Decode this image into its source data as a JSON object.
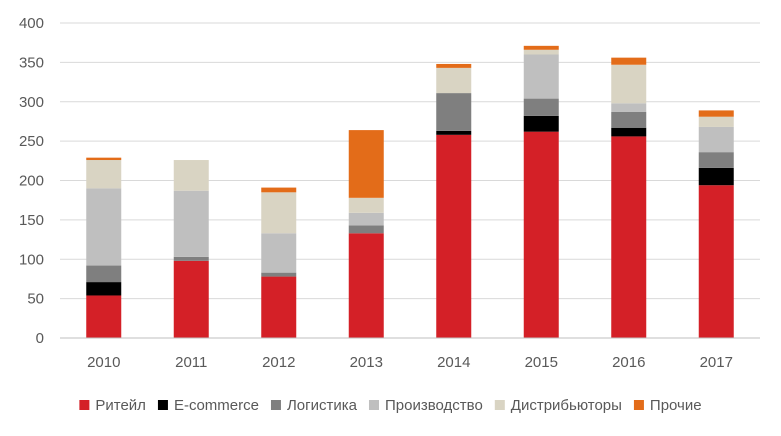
{
  "chart_data": {
    "type": "bar",
    "stacked": true,
    "title": "",
    "xlabel": "",
    "ylabel": "",
    "categories": [
      "2010",
      "2011",
      "2012",
      "2013",
      "2014",
      "2015",
      "2016",
      "2017"
    ],
    "ylim": [
      0,
      400
    ],
    "yticks": [
      0,
      50,
      100,
      150,
      200,
      250,
      300,
      350,
      400
    ],
    "grid": true,
    "legend_position": "bottom",
    "series": [
      {
        "name": "Ритейл",
        "color": "#d42027",
        "values": [
          54,
          98,
          78,
          133,
          258,
          262,
          256,
          194
        ]
      },
      {
        "name": "E-commerce",
        "color": "#000000",
        "values": [
          17,
          0,
          0,
          0,
          5,
          20,
          11,
          22
        ]
      },
      {
        "name": "Логистика",
        "color": "#7f7f7f",
        "values": [
          21,
          5,
          5,
          10,
          48,
          22,
          20,
          20
        ]
      },
      {
        "name": "Производство",
        "color": "#bfbfbf",
        "values": [
          98,
          84,
          50,
          16,
          0,
          56,
          11,
          32
        ]
      },
      {
        "name": "Дистрибьюторы",
        "color": "#d9d4c3",
        "values": [
          36,
          39,
          52,
          19,
          32,
          6,
          49,
          13
        ]
      },
      {
        "name": "Прочие",
        "color": "#e36c19",
        "values": [
          3,
          0,
          6,
          86,
          5,
          5,
          9,
          8
        ]
      }
    ]
  }
}
